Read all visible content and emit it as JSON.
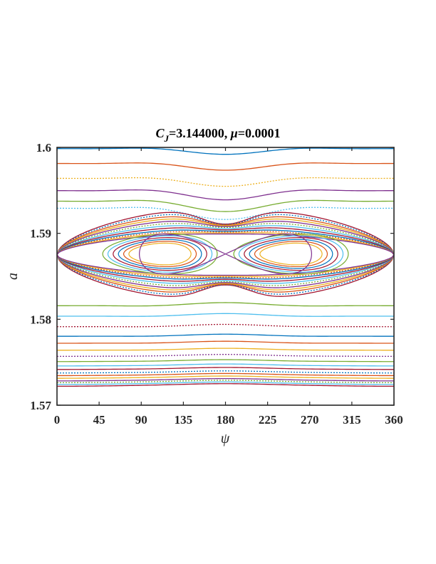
{
  "chart_data": {
    "type": "line",
    "title_parts": {
      "c": "C",
      "sub": "J",
      "value": "=3.144000,  ",
      "mu": "μ",
      "mu_value": "=0.0001"
    },
    "xlabel": "ψ",
    "ylabel": "a",
    "xlim": [
      0,
      360
    ],
    "ylim": [
      1.57,
      1.6
    ],
    "xticks": [
      0,
      45,
      90,
      135,
      180,
      225,
      270,
      315,
      360
    ],
    "xtick_labels": [
      "0",
      "45",
      "90",
      "135",
      "180",
      "225",
      "270",
      "315",
      "360"
    ],
    "yticks": [
      1.57,
      1.58,
      1.59,
      1.6
    ],
    "ytick_labels": [
      "1.57",
      "1.58",
      "1.59",
      "1.6"
    ],
    "grid": false,
    "colors": [
      "#0072BD",
      "#D95319",
      "#EDB120",
      "#7E2F8E",
      "#77AC30",
      "#4DBEEE",
      "#A2142F"
    ],
    "resonance_center_a": 1.5875,
    "separatrix_half_width": 0.0024,
    "island_centers_psi": [
      110,
      250
    ],
    "x_point_psi": 180,
    "circulating_above": [
      1.6,
      1.5983,
      1.5966,
      1.5952,
      1.594,
      1.5932
    ],
    "circulating_below": [
      1.5815,
      1.5803,
      1.5791,
      1.578,
      1.5772,
      1.5764,
      1.5757,
      1.5751,
      1.5746,
      1.5742,
      1.5738,
      1.5735,
      1.5732,
      1.5729,
      1.5727,
      1.5725,
      1.5723
    ],
    "librating_amplitudes": [
      0.0055,
      0.0052,
      0.0049,
      0.0046,
      0.0043,
      0.004,
      0.0037,
      0.0034,
      0.0031,
      0.0029,
      0.0027,
      0.0025
    ],
    "inner_island_levels": [
      0.95,
      0.85,
      0.75,
      0.65,
      0.55,
      0.45
    ]
  }
}
